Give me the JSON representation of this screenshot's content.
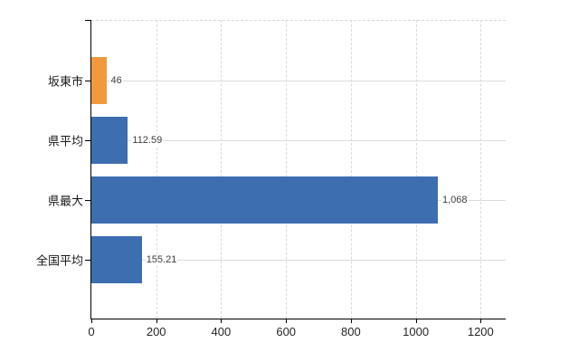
{
  "chart_data": {
    "type": "bar",
    "orientation": "horizontal",
    "categories": [
      "坂東市",
      "県平均",
      "県最大",
      "全国平均"
    ],
    "values": [
      46,
      112.59,
      1068,
      155.21
    ],
    "value_labels": [
      "46",
      "112.59",
      "1,068",
      "155.21"
    ],
    "bar_colors": [
      "#f2993c",
      "#3d6eb0",
      "#3d6eb0",
      "#3d6eb0"
    ],
    "xlim": [
      0,
      1200
    ],
    "x_ticks": [
      0,
      200,
      400,
      600,
      800,
      1000,
      1200
    ],
    "x_tick_labels": [
      "0",
      "200",
      "400",
      "600",
      "800",
      "1000",
      "1200"
    ],
    "grid": true,
    "legend": false
  },
  "colors": {
    "background": "#ffffff",
    "highlight_bar": "#f2993c",
    "default_bar": "#3d6eb0",
    "gridline": "#d9d9d9",
    "row_gridline": "#dbdbdb",
    "axis": "#000000",
    "category_label_text": "#1a1a1a",
    "tick_label_text": "#262626",
    "value_label_text": "#3d3d3d"
  }
}
